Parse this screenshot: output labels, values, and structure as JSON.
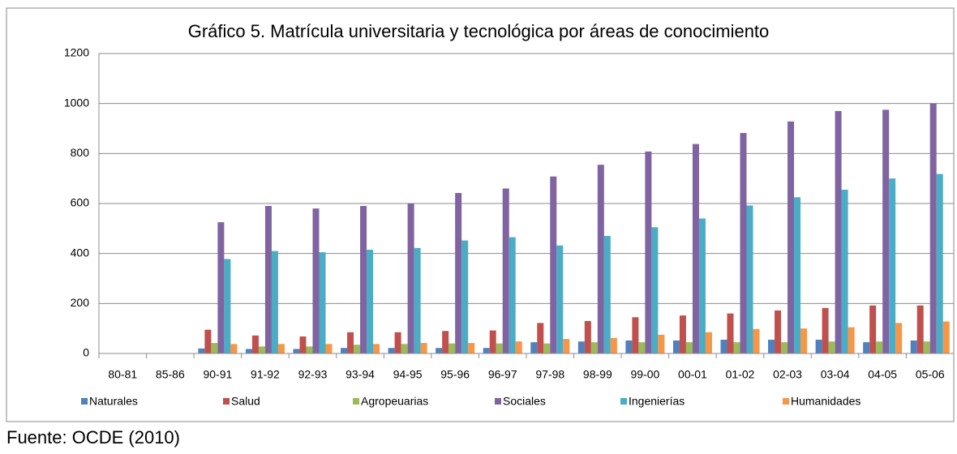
{
  "chart_data": {
    "type": "bar",
    "title": "Gráfico 5. Matrícula universitaria y tecnológica por áreas de conocimiento",
    "source": "Fuente: OCDE (2010)",
    "categories": [
      "80-81",
      "85-86",
      "90-91",
      "91-92",
      "92-93",
      "93-94",
      "94-95",
      "95-96",
      "96-97",
      "97-98",
      "98-99",
      "99-00",
      "00-01",
      "01-02",
      "02-03",
      "03-04",
      "04-05",
      "05-06"
    ],
    "series": [
      {
        "name": "Naturales",
        "color": "#4f81bd",
        "values": [
          null,
          null,
          20,
          18,
          18,
          22,
          22,
          22,
          22,
          45,
          48,
          52,
          52,
          55,
          55,
          55,
          45,
          52
        ]
      },
      {
        "name": "Salud",
        "color": "#c0504d",
        "values": [
          null,
          null,
          95,
          72,
          68,
          85,
          85,
          90,
          92,
          122,
          130,
          145,
          152,
          160,
          172,
          182,
          192,
          192
        ]
      },
      {
        "name": "Agropeuarias",
        "color": "#9bbb59",
        "values": [
          null,
          null,
          42,
          28,
          28,
          35,
          38,
          40,
          40,
          40,
          45,
          45,
          45,
          45,
          45,
          48,
          48,
          48
        ]
      },
      {
        "name": "Sociales",
        "color": "#8064a2",
        "values": [
          null,
          null,
          525,
          590,
          580,
          590,
          600,
          642,
          660,
          708,
          755,
          808,
          838,
          882,
          928,
          970,
          975,
          1000
        ]
      },
      {
        "name": "Ingenierías",
        "color": "#4bacc6",
        "values": [
          null,
          null,
          378,
          410,
          405,
          415,
          422,
          452,
          465,
          432,
          470,
          505,
          540,
          592,
          625,
          655,
          700,
          718
        ]
      },
      {
        "name": "Humanidades",
        "color": "#f79646",
        "values": [
          null,
          null,
          38,
          38,
          38,
          38,
          42,
          42,
          48,
          58,
          62,
          75,
          85,
          98,
          100,
          105,
          122,
          128
        ]
      }
    ],
    "ylim": [
      0,
      1200
    ],
    "yticks": [
      0,
      200,
      400,
      600,
      800,
      1000,
      1200
    ],
    "grid": true,
    "legend": "bottom"
  }
}
